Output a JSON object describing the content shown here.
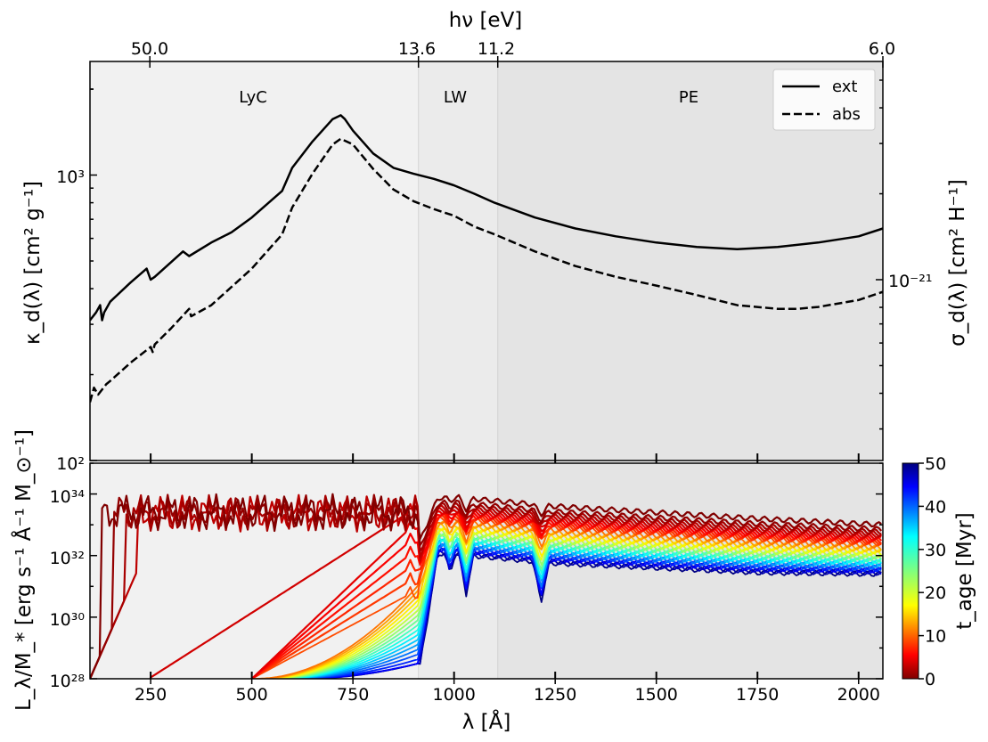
{
  "chart_data": [
    {
      "type": "line",
      "panel": "top",
      "ylabel_left": "κ_d(λ) [cm² g⁻¹]",
      "ylabel_right": "σ_d(λ) [cm² H⁻¹]",
      "xlabel_top": "hν [eV]",
      "xlim": [
        100,
        2060
      ],
      "ylim": [
        100,
        2500
      ],
      "yscale": "log",
      "yticks_left": [
        {
          "v": 100,
          "label": "10²"
        },
        {
          "v": 1000,
          "label": "10³"
        }
      ],
      "ytick_right": {
        "v": 430,
        "label": "10⁻²¹"
      },
      "top_ticks": [
        {
          "lambda": 248,
          "label": "50.0"
        },
        {
          "lambda": 912,
          "label": "13.6"
        },
        {
          "lambda": 1108,
          "label": "11.2"
        },
        {
          "lambda": 2066,
          "label": "6.0"
        }
      ],
      "regions": [
        {
          "name": "LyC",
          "from": 100,
          "to": 912,
          "color": "#f1f1f1",
          "label_x": 450
        },
        {
          "name": "LW",
          "from": 912,
          "to": 1108,
          "color": "#ebebeb",
          "label_x": 1000
        },
        {
          "name": "PE",
          "from": 1108,
          "to": 2060,
          "color": "#e4e4e4",
          "label_x": 1560
        }
      ],
      "legend": {
        "position": "top-right",
        "entries": [
          {
            "label": "ext",
            "style": "solid"
          },
          {
            "label": "abs",
            "style": "dashed"
          }
        ]
      },
      "series": [
        {
          "name": "ext",
          "style": "solid",
          "x": [
            100,
            115,
            125,
            130,
            135,
            150,
            200,
            240,
            250,
            260,
            330,
            345,
            400,
            450,
            500,
            575,
            600,
            650,
            700,
            720,
            730,
            750,
            800,
            850,
            900,
            950,
            1000,
            1050,
            1100,
            1200,
            1300,
            1400,
            1500,
            1600,
            1700,
            1800,
            1900,
            2000,
            2060
          ],
          "y": [
            310,
            330,
            350,
            310,
            330,
            360,
            420,
            470,
            430,
            440,
            540,
            520,
            580,
            630,
            710,
            880,
            1060,
            1310,
            1570,
            1620,
            1570,
            1430,
            1190,
            1060,
            1010,
            970,
            920,
            860,
            800,
            710,
            650,
            610,
            580,
            560,
            550,
            560,
            580,
            610,
            650
          ]
        },
        {
          "name": "abs",
          "style": "dashed",
          "x": [
            100,
            110,
            120,
            140,
            150,
            200,
            250,
            255,
            260,
            300,
            345,
            350,
            400,
            500,
            575,
            600,
            650,
            700,
            720,
            750,
            800,
            850,
            900,
            950,
            1000,
            1050,
            1100,
            1200,
            1300,
            1400,
            1500,
            1600,
            1700,
            1800,
            1850,
            1900,
            2000,
            2060
          ],
          "y": [
            160,
            180,
            170,
            185,
            190,
            220,
            250,
            240,
            255,
            290,
            340,
            320,
            350,
            470,
            620,
            770,
            1010,
            1280,
            1340,
            1280,
            1050,
            890,
            810,
            760,
            720,
            660,
            620,
            540,
            480,
            440,
            410,
            380,
            350,
            340,
            340,
            345,
            365,
            390
          ]
        }
      ]
    },
    {
      "type": "line",
      "panel": "bottom",
      "title": "",
      "xlabel": "λ [Å]",
      "ylabel": "L_λ/M_* [erg s⁻¹ Å⁻¹ M_⊙⁻¹]",
      "xlim": [
        100,
        2060
      ],
      "xticks": [
        250,
        500,
        750,
        1000,
        1250,
        1500,
        1750,
        2000
      ],
      "ylim_log10": [
        28,
        35
      ],
      "yscale": "log",
      "yticks": [
        {
          "exp": 28,
          "label": "10²⁸"
        },
        {
          "exp": 30,
          "label": "10³⁰"
        },
        {
          "exp": 32,
          "label": "10³²"
        },
        {
          "exp": 34,
          "label": "10³⁴"
        }
      ],
      "colorbar": {
        "label": "t_age [Myr]",
        "min": 0,
        "max": 50,
        "ticks": [
          0,
          10,
          20,
          30,
          40,
          50
        ],
        "colormap": "jet_r"
      },
      "series_description": "Stellar population spectra for ages 0–50 Myr (one line per age step), colored by age",
      "ages_myr": [
        0,
        1,
        2,
        3,
        4,
        5,
        6,
        7,
        8,
        9,
        10,
        12,
        14,
        16,
        18,
        20,
        22,
        24,
        26,
        28,
        30,
        32,
        34,
        36,
        38,
        40,
        42,
        44,
        46,
        48,
        50
      ],
      "nonionizing_log10": {
        "x": [
          912,
          1000,
          1250,
          1500,
          1750,
          2060
        ],
        "age0": [
          33.85,
          33.9,
          33.6,
          33.4,
          33.2,
          33.0
        ],
        "age50": [
          32.1,
          32.05,
          31.75,
          31.6,
          31.45,
          31.4
        ]
      },
      "absorption_lines_A": [
        1030,
        1215
      ],
      "ionizing_edge_onset_A": {
        "young": 125,
        "intermediate": 500
      }
    }
  ]
}
